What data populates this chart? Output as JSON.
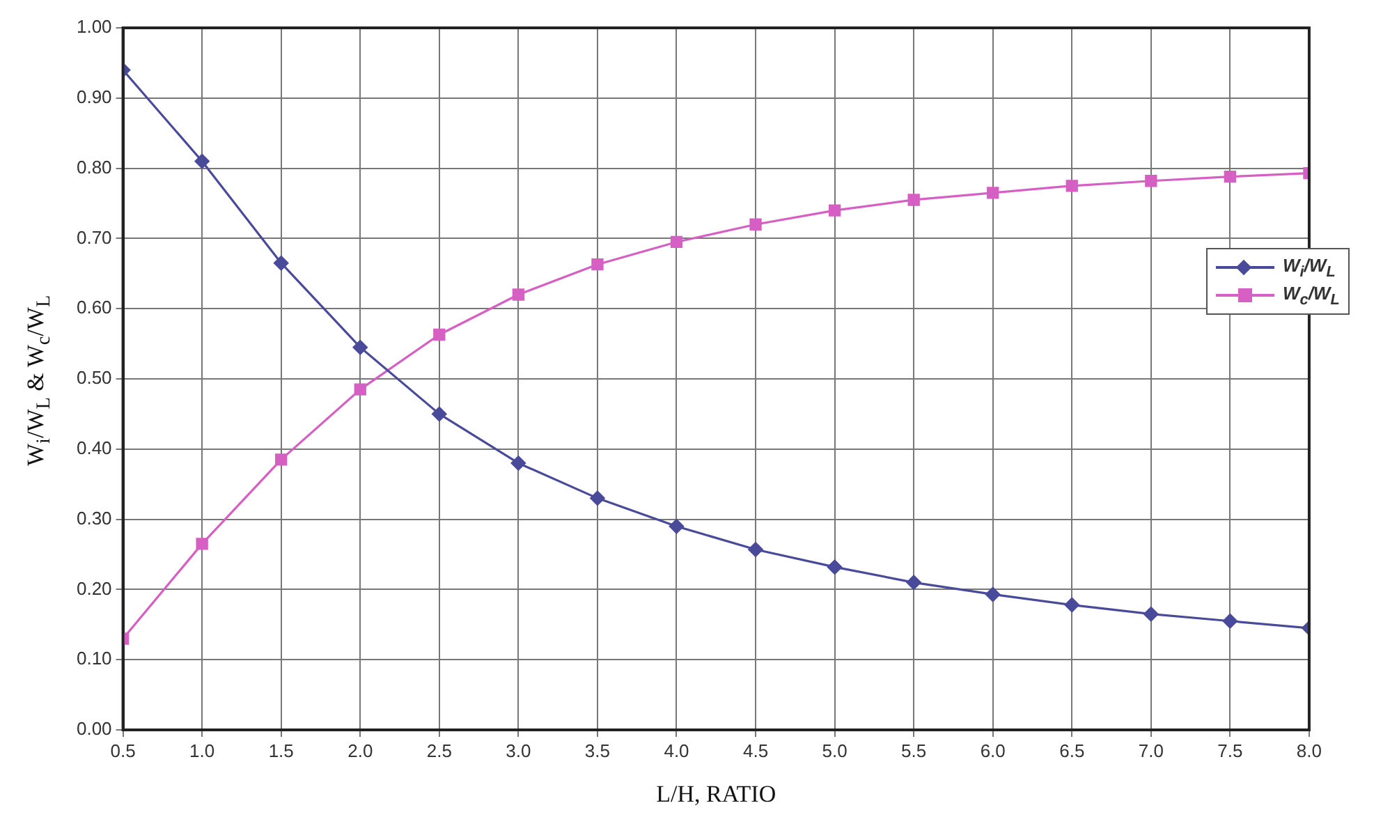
{
  "chart_data": {
    "type": "line",
    "xlabel": "L/H, RATIO",
    "ylabel": "W$_{i}$/W$_{L}$ & W$_{c}$/W$_{L}$",
    "x": [
      0.5,
      1.0,
      1.5,
      2.0,
      2.5,
      3.0,
      3.5,
      4.0,
      4.5,
      5.0,
      5.5,
      6.0,
      6.5,
      7.0,
      7.5,
      8.0
    ],
    "series": [
      {
        "name": "W$_{i}$/W$_{L}$",
        "color": "#4a4a9a",
        "marker": "diamond",
        "values": [
          0.94,
          0.81,
          0.665,
          0.545,
          0.45,
          0.38,
          0.33,
          0.29,
          0.257,
          0.232,
          0.21,
          0.193,
          0.178,
          0.165,
          0.155,
          0.145
        ]
      },
      {
        "name": "W$_{c}$/W$_{L}$",
        "color": "#d65fc4",
        "marker": "square",
        "values": [
          0.13,
          0.265,
          0.385,
          0.485,
          0.563,
          0.62,
          0.663,
          0.695,
          0.72,
          0.74,
          0.755,
          0.765,
          0.775,
          0.782,
          0.788,
          0.793
        ]
      }
    ],
    "xlim": [
      0.5,
      8.0
    ],
    "xticks": [
      {
        "value": 0.5,
        "label": "0.5"
      },
      {
        "value": 1,
        "label": "1.0"
      },
      {
        "value": 1.5,
        "label": "1.5"
      },
      {
        "value": 2,
        "label": "2.0"
      },
      {
        "value": 2.5,
        "label": "2.5"
      },
      {
        "value": 3,
        "label": "3.0"
      },
      {
        "value": 3.5,
        "label": "3.5"
      },
      {
        "value": 4,
        "label": "4.0"
      },
      {
        "value": 4.5,
        "label": "4.5"
      },
      {
        "value": 5,
        "label": "5.0"
      },
      {
        "value": 5.5,
        "label": "5.5"
      },
      {
        "value": 6,
        "label": "6.0"
      },
      {
        "value": 6.5,
        "label": "6.5"
      },
      {
        "value": 7,
        "label": "7.0"
      },
      {
        "value": 7.5,
        "label": "7.5"
      },
      {
        "value": 8,
        "label": "8.0"
      }
    ],
    "ylim": [
      0,
      1
    ],
    "yticks": [
      {
        "value": 0,
        "label": "0.00"
      },
      {
        "value": 0.1,
        "label": "0.10"
      },
      {
        "value": 0.2,
        "label": "0.20"
      },
      {
        "value": 0.3,
        "label": "0.30"
      },
      {
        "value": 0.4,
        "label": "0.40"
      },
      {
        "value": 0.5,
        "label": "0.50"
      },
      {
        "value": 0.6,
        "label": "0.60"
      },
      {
        "value": 0.7,
        "label": "0.70"
      },
      {
        "value": 0.8,
        "label": "0.80"
      },
      {
        "value": 0.9,
        "label": "0.90"
      },
      {
        "value": 1,
        "label": "1.00"
      }
    ],
    "grid": true,
    "legend": "right",
    "line_style": "solid"
  }
}
